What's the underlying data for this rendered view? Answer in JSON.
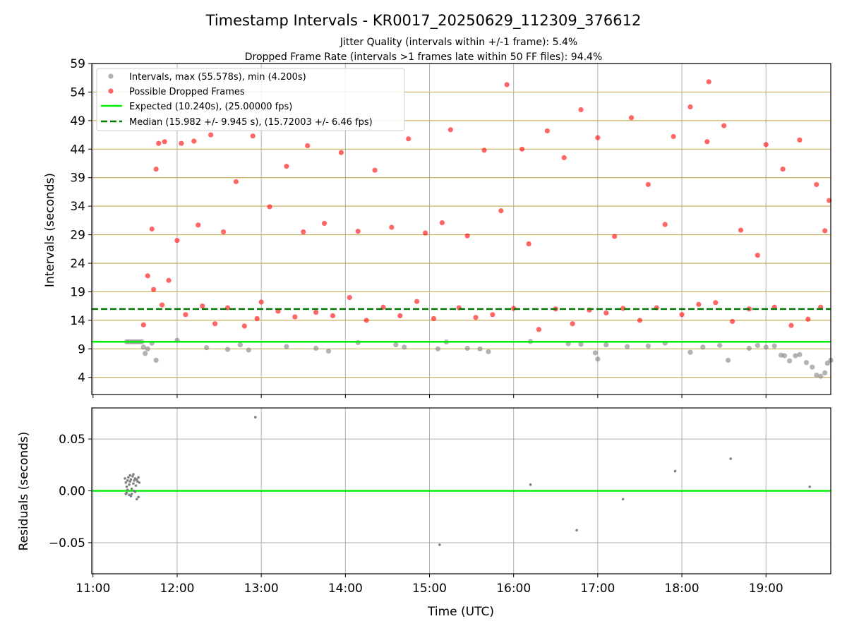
{
  "figure": {
    "title": "Timestamp Intervals - KR0017_20250629_112309_376612",
    "subtitle_1": "Jitter Quality (intervals within +/-1 frame): 5.4%",
    "subtitle_2": "Dropped Frame Rate (intervals >1 frames late within 50 FF files): 94.4%"
  },
  "colors": {
    "ok_points": "#808080",
    "dropped_points": "#ff0000",
    "expected_line": "#00ee00",
    "median_line": "#007a00",
    "horizontal_grid": "#c8b060",
    "grid": "#b0b0b0"
  },
  "chart_data": [
    {
      "type": "scatter",
      "panel": "intervals",
      "ylabel": "Intervals (seconds)",
      "xlabel": "",
      "x_unit": "hours since 00:00 UTC",
      "xlim": [
        10.985,
        19.77
      ],
      "ylim": [
        1.0,
        59.0
      ],
      "yticks": [
        4,
        9,
        14,
        19,
        24,
        29,
        34,
        39,
        44,
        49,
        54,
        59
      ],
      "grid": "horizontal lines at every y tick; vertical lines at every hour",
      "legend_position": "top-left",
      "legend": [
        "Intervals, max (55.578s), min (4.200s)",
        "Possible Dropped Frames",
        "Expected (10.240s), (25.00000 fps)",
        "Median (15.982 +/- 9.945 s), (15.72003 +/- 6.46 fps)"
      ],
      "expected_interval": 10.24,
      "median_interval": 15.982,
      "series": [
        {
          "name": "Intervals, max (55.578s), min (4.200s)",
          "x": [
            11.4,
            11.43,
            11.46,
            11.49,
            11.52,
            11.55,
            11.58,
            11.6,
            11.62,
            11.65,
            11.7,
            11.75,
            12.0,
            12.35,
            12.6,
            12.75,
            12.85,
            13.3,
            13.65,
            13.8,
            14.15,
            14.6,
            14.7,
            15.1,
            15.2,
            15.45,
            15.6,
            15.7,
            16.2,
            16.65,
            16.8,
            16.97,
            17.0,
            17.1,
            17.35,
            17.6,
            17.8,
            18.1,
            18.25,
            18.45,
            18.55,
            18.8,
            18.9,
            19.0,
            19.1,
            19.18,
            19.22,
            19.28,
            19.35,
            19.4,
            19.48,
            19.55,
            19.6,
            19.65,
            19.7,
            19.73,
            19.77
          ],
          "y": [
            10.24,
            10.24,
            10.24,
            10.24,
            10.24,
            10.24,
            10.24,
            9.3,
            8.2,
            9.0,
            10.0,
            7.0,
            10.5,
            9.2,
            8.9,
            9.7,
            8.8,
            9.4,
            9.1,
            8.6,
            10.1,
            9.7,
            9.3,
            9.0,
            10.2,
            9.1,
            9.0,
            8.5,
            10.3,
            9.9,
            9.8,
            8.3,
            7.2,
            9.7,
            9.4,
            9.5,
            10.0,
            8.4,
            9.3,
            9.6,
            7.0,
            9.1,
            9.6,
            9.3,
            9.5,
            7.9,
            7.8,
            6.9,
            7.8,
            8.0,
            6.6,
            5.8,
            4.4,
            4.2,
            4.8,
            6.5,
            7.0
          ]
        },
        {
          "name": "Possible Dropped Frames",
          "x": [
            11.6,
            11.65,
            11.7,
            11.72,
            11.75,
            11.78,
            11.82,
            11.85,
            11.9,
            12.0,
            12.05,
            12.1,
            12.2,
            12.25,
            12.3,
            12.4,
            12.45,
            12.55,
            12.6,
            12.7,
            12.8,
            12.9,
            12.95,
            13.0,
            13.1,
            13.2,
            13.3,
            13.4,
            13.5,
            13.55,
            13.65,
            13.75,
            13.85,
            13.95,
            14.05,
            14.15,
            14.25,
            14.35,
            14.45,
            14.55,
            14.65,
            14.75,
            14.85,
            14.95,
            15.05,
            15.15,
            15.25,
            15.35,
            15.45,
            15.55,
            15.65,
            15.75,
            15.85,
            15.92,
            16.0,
            16.1,
            16.18,
            16.3,
            16.4,
            16.5,
            16.6,
            16.7,
            16.8,
            16.9,
            17.0,
            17.1,
            17.2,
            17.3,
            17.4,
            17.5,
            17.6,
            17.7,
            17.8,
            17.9,
            18.0,
            18.1,
            18.2,
            18.3,
            18.32,
            18.4,
            18.5,
            18.6,
            18.7,
            18.8,
            18.9,
            19.0,
            19.1,
            19.2,
            19.3,
            19.4,
            19.5,
            19.6,
            19.65,
            19.7,
            19.75
          ],
          "y": [
            13.2,
            21.8,
            30.0,
            19.4,
            40.5,
            45.0,
            16.7,
            45.3,
            21.0,
            28.0,
            45.0,
            15.0,
            45.4,
            30.7,
            16.5,
            46.5,
            13.4,
            29.5,
            16.2,
            38.3,
            13.0,
            46.3,
            14.3,
            17.2,
            33.9,
            15.6,
            41.0,
            14.6,
            29.5,
            44.6,
            15.4,
            31.0,
            14.8,
            43.4,
            18.0,
            29.6,
            14.0,
            40.3,
            16.3,
            30.3,
            14.8,
            45.8,
            17.3,
            29.3,
            14.3,
            31.1,
            47.4,
            16.2,
            28.8,
            14.5,
            43.8,
            15.0,
            33.2,
            55.3,
            16.1,
            44.0,
            27.4,
            12.4,
            47.2,
            16.0,
            42.5,
            13.4,
            50.9,
            15.8,
            46.0,
            15.3,
            28.7,
            16.1,
            49.5,
            14.0,
            37.8,
            16.2,
            30.8,
            46.2,
            15.0,
            51.4,
            16.8,
            45.3,
            55.8,
            17.1,
            48.1,
            13.8,
            29.8,
            16.0,
            25.4,
            44.8,
            16.3,
            40.5,
            13.1,
            45.6,
            14.2,
            37.8,
            16.3,
            29.7,
            35.0
          ]
        },
        {
          "name": "Expected (10.240s), (25.00000 fps)",
          "x": [
            10.985,
            19.77
          ],
          "y": [
            10.24,
            10.24
          ]
        },
        {
          "name": "Median (15.982 +/- 9.945 s), (15.72003 +/- 6.46 fps)",
          "x": [
            10.985,
            19.77
          ],
          "y": [
            15.982,
            15.982
          ]
        }
      ]
    },
    {
      "type": "scatter",
      "panel": "residuals",
      "xlabel": "Time (UTC)",
      "ylabel": "Residuals (seconds)",
      "x_unit": "hours since 00:00 UTC",
      "xlim": [
        10.985,
        19.77
      ],
      "ylim": [
        -0.08,
        0.08
      ],
      "yticks": [
        -0.05,
        0.0,
        0.05
      ],
      "ytick_labels": [
        "−0.05",
        "0.00",
        "0.05"
      ],
      "xticks": [
        11,
        12,
        13,
        14,
        15,
        16,
        17,
        18,
        19
      ],
      "xtick_labels": [
        "11:00",
        "12:00",
        "13:00",
        "14:00",
        "15:00",
        "16:00",
        "17:00",
        "18:00",
        "19:00"
      ],
      "grid": true,
      "zero_line": 0.0,
      "series": [
        {
          "name": "",
          "x": [
            11.38,
            11.39,
            11.4,
            11.41,
            11.42,
            11.43,
            11.44,
            11.45,
            11.46,
            11.47,
            11.48,
            11.49,
            11.5,
            11.51,
            11.52,
            11.53,
            11.54,
            11.55,
            11.4,
            11.43,
            11.46,
            11.49,
            11.52,
            11.41,
            11.45,
            11.5,
            11.54,
            11.39,
            11.44,
            11.48,
            12.93,
            15.12,
            16.2,
            16.75,
            17.3,
            17.92,
            18.58,
            19.52
          ],
          "y": [
            0.012,
            0.008,
            0.004,
            0.01,
            0.013,
            0.006,
            0.009,
            0.011,
            0.002,
            0.014,
            0.007,
            0.01,
            0.012,
            0.005,
            0.011,
            0.009,
            0.013,
            0.008,
            -0.002,
            -0.004,
            -0.003,
            0.0,
            -0.008,
            0.001,
            -0.005,
            -0.001,
            -0.006,
            -0.003,
            0.015,
            0.016,
            0.071,
            -0.052,
            0.006,
            -0.038,
            -0.008,
            0.019,
            0.031,
            0.004
          ]
        }
      ]
    }
  ]
}
